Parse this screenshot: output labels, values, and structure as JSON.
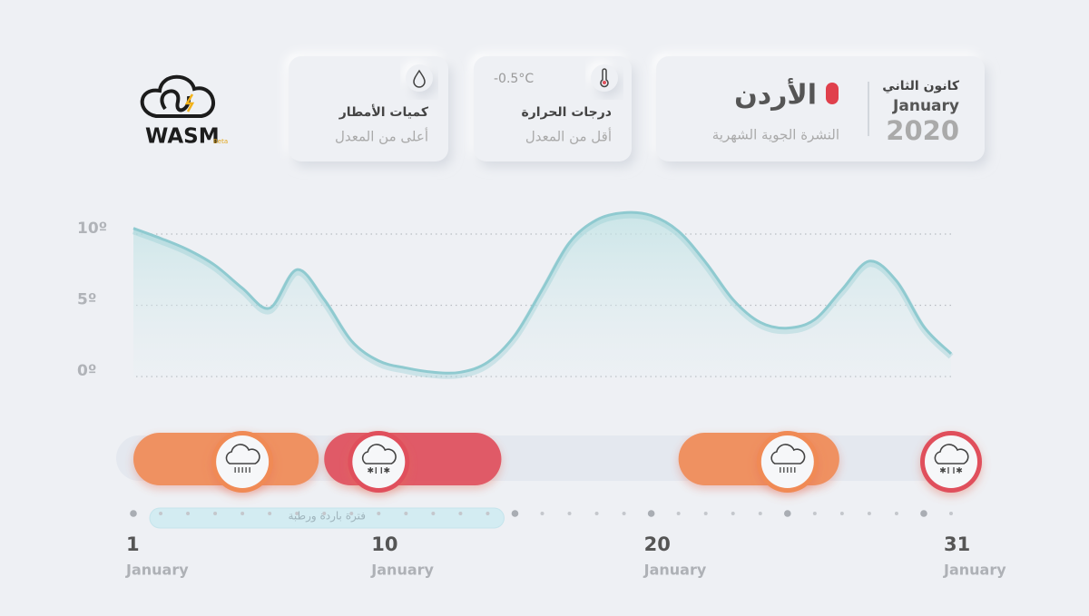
{
  "logo": {
    "name": "WASM",
    "badge": "Beta"
  },
  "header": {
    "month_ar": "كانون الثاني",
    "month_en": "January",
    "year": "2020",
    "country": "الأردن",
    "subtitle": "النشرة الجوية الشهرية"
  },
  "cards": [
    {
      "title": "درجات الحرارة",
      "status": "أقل من المعدل",
      "value": "-0.5°C",
      "icon": "thermometer"
    },
    {
      "title": "كميات الأمطار",
      "status": "أعلى من المعدل",
      "icon": "drop"
    }
  ],
  "chart_data": {
    "type": "line",
    "x": [
      1,
      2,
      3,
      4,
      5,
      6,
      7,
      8,
      9,
      10,
      11,
      12,
      13,
      14,
      15,
      16,
      17,
      18,
      19,
      20,
      21,
      22,
      23,
      24,
      25,
      26,
      27,
      28,
      29,
      30,
      31
    ],
    "series": [
      {
        "color": "#8fcad0",
        "values": [
          10.4,
          9.7,
          8.9,
          7.8,
          6.2,
          4.8,
          7.5,
          5.4,
          2.5,
          1.1,
          0.6,
          0.3,
          0.3,
          1.0,
          2.9,
          6.1,
          9.4,
          11.0,
          11.5,
          11.3,
          10.2,
          8.0,
          5.4,
          3.8,
          3.4,
          4.0,
          6.1,
          8.1,
          6.7,
          3.5,
          1.6
        ]
      }
    ],
    "xlim": [
      1,
      31
    ],
    "ylim": [
      0,
      12
    ],
    "yticks": [
      {
        "value": 10,
        "label": "10º"
      },
      {
        "value": 5,
        "label": "5º"
      },
      {
        "value": 0,
        "label": "0º"
      }
    ],
    "xticks": [
      1,
      10,
      20,
      31
    ],
    "x_tick_sublabel": "January",
    "minor_xticks": [
      1,
      2,
      3,
      4,
      5,
      6,
      7,
      8,
      9,
      10,
      11,
      12,
      13,
      14,
      15,
      16,
      17,
      18,
      19,
      20,
      21,
      22,
      23,
      24,
      25,
      26,
      27,
      28,
      29,
      30,
      31
    ],
    "major_dots": [
      1,
      15,
      20,
      25,
      30
    ],
    "grid": true,
    "events": [
      {
        "start": 1,
        "end": 7.8,
        "icon_at": 5,
        "color": "#f08a55",
        "icon": "rain"
      },
      {
        "start": 8,
        "end": 14.5,
        "icon_at": 10,
        "color": "#e0505c",
        "icon": "snow"
      },
      {
        "start": 21,
        "end": 26.9,
        "icon_at": 25,
        "color": "#f08a55",
        "icon": "rain"
      },
      {
        "start": 31,
        "end": 31,
        "icon_at": 31,
        "color": "#e0505c",
        "icon": "snow"
      }
    ],
    "annotation": {
      "text": "فترة باردة ورطبة",
      "start": 1.6,
      "end": 14.6
    }
  }
}
